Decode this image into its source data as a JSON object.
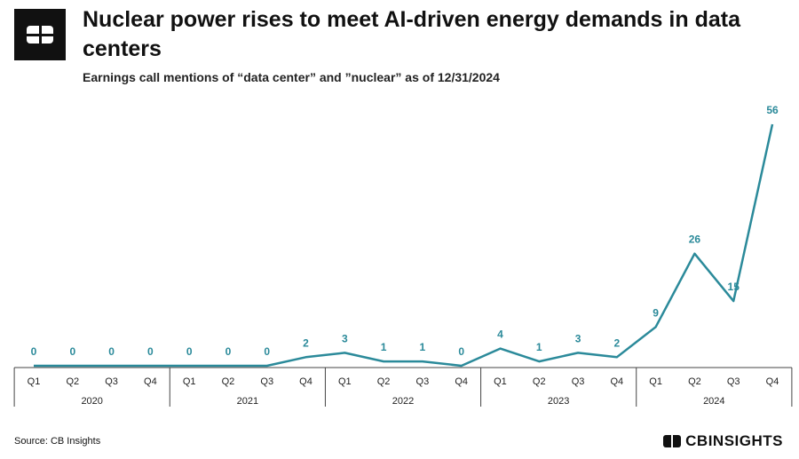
{
  "header": {
    "title": "Nuclear power rises to meet AI-driven energy demands in data centers",
    "subtitle": "Earnings call mentions of “data center” and ”nuclear” as of 12/31/2024"
  },
  "footer": {
    "source": "Source: CB Insights",
    "brand": "CBINSIGHTS"
  },
  "colors": {
    "line": "#2b8a9a",
    "label": "#2b8a9a",
    "axis": "#444444"
  },
  "chart_data": {
    "type": "line",
    "title": "Nuclear power rises to meet AI-driven energy demands in data centers",
    "subtitle": "Earnings call mentions of “data center” and ”nuclear” as of 12/31/2024",
    "categories": [
      "Q1",
      "Q2",
      "Q3",
      "Q4",
      "Q1",
      "Q2",
      "Q3",
      "Q4",
      "Q1",
      "Q2",
      "Q3",
      "Q4",
      "Q1",
      "Q2",
      "Q3",
      "Q4",
      "Q1",
      "Q2",
      "Q3",
      "Q4"
    ],
    "groups": [
      {
        "label": "2020",
        "count": 4
      },
      {
        "label": "2021",
        "count": 4
      },
      {
        "label": "2022",
        "count": 4
      },
      {
        "label": "2023",
        "count": 4
      },
      {
        "label": "2024",
        "count": 4
      }
    ],
    "series": [
      {
        "values": [
          0,
          0,
          0,
          0,
          0,
          0,
          0,
          2,
          3,
          1,
          1,
          0,
          4,
          1,
          3,
          2,
          9,
          26,
          15,
          56
        ]
      }
    ],
    "ylim": [
      0,
      56
    ],
    "grid": false,
    "legend": "none"
  }
}
